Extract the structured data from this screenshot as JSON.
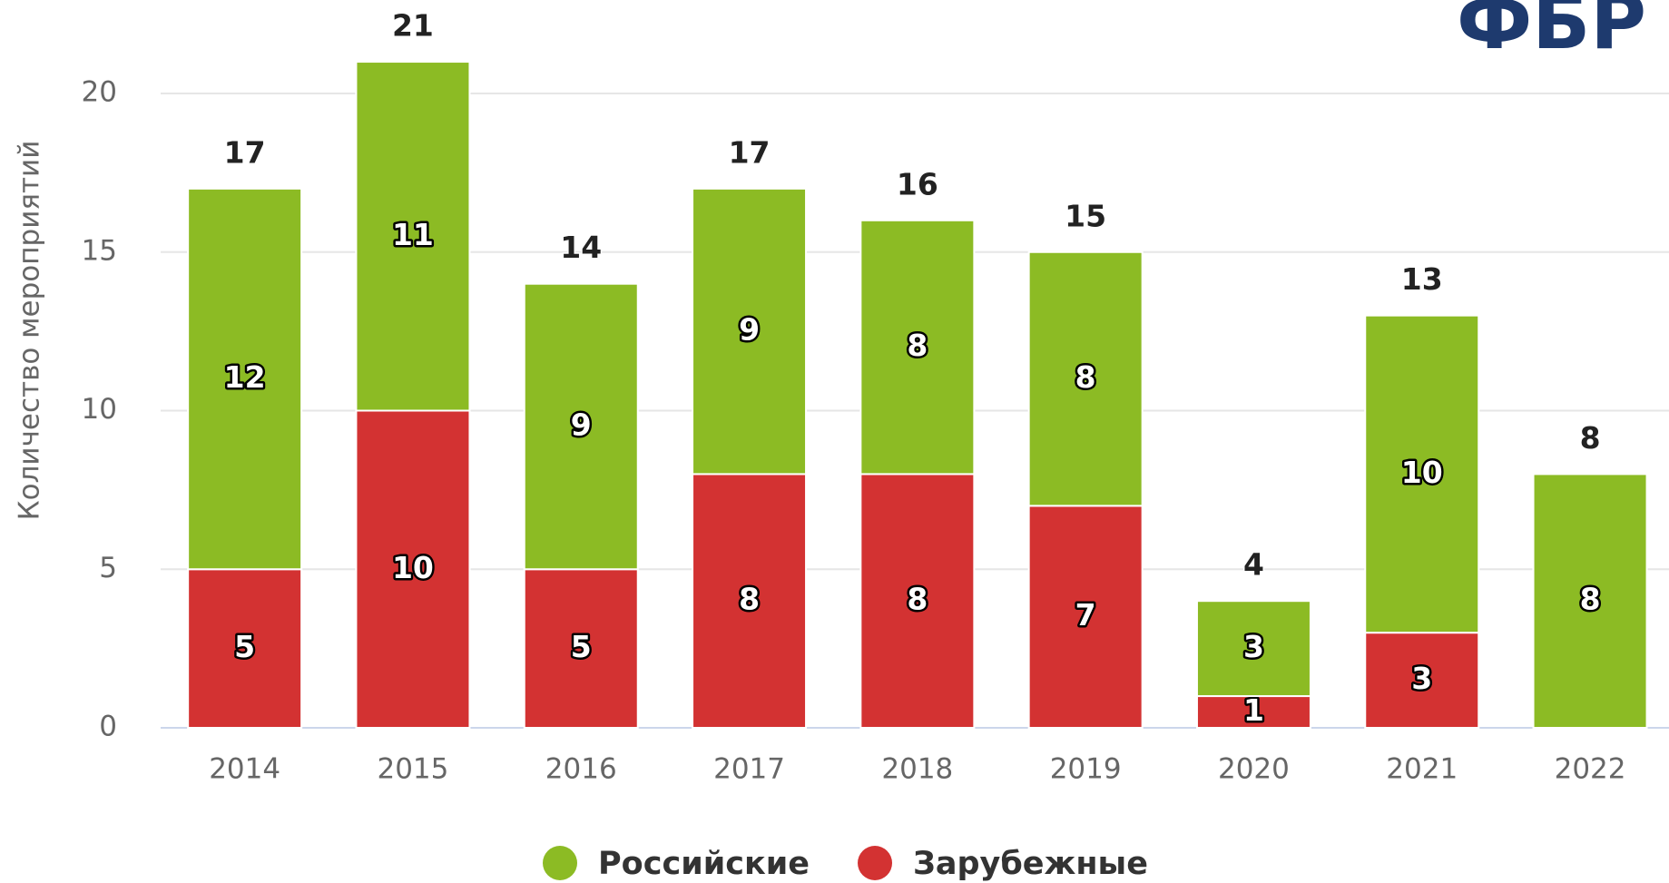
{
  "logo": "ФБР",
  "chart_data": {
    "type": "stacked_bar",
    "y_label": "Количество мероприятий",
    "categories": [
      "2014",
      "2015",
      "2016",
      "2017",
      "2018",
      "2019",
      "2020",
      "2021",
      "2022"
    ],
    "series": [
      {
        "name": "Зарубежные",
        "color": "#d33232",
        "values": [
          5,
          10,
          5,
          8,
          8,
          7,
          1,
          3,
          0
        ]
      },
      {
        "name": "Российские",
        "color": "#8cbb24",
        "values": [
          12,
          11,
          9,
          9,
          8,
          8,
          3,
          10,
          8
        ]
      }
    ],
    "totals": [
      17,
      21,
      14,
      17,
      16,
      15,
      4,
      13,
      8
    ],
    "ylim": [
      0,
      20
    ],
    "yticks": [
      0,
      5,
      10,
      15,
      20
    ],
    "grid": true,
    "legend_order": [
      1,
      0
    ]
  }
}
